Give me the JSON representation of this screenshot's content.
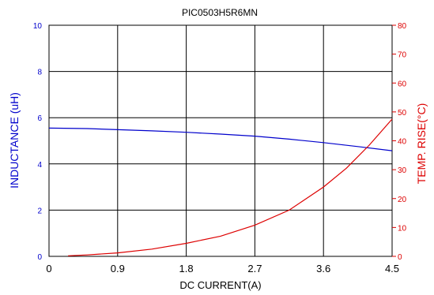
{
  "chart_data": {
    "type": "line",
    "title": "PIC0503H5R6MN",
    "xlabel": "DC CURRENT(A)",
    "ylabel_left": "INDUCTANCE (uH)",
    "ylabel_right": "TEMP. RISE(°C)",
    "xlim": [
      0,
      4.5
    ],
    "ylim_left": [
      0,
      10
    ],
    "ylim_right": [
      0,
      80
    ],
    "x_ticks": [
      "0",
      "0.9",
      "1.8",
      "2.7",
      "3.6",
      "4.5"
    ],
    "y_ticks_left": [
      "0",
      "2",
      "4",
      "6",
      "8",
      "10"
    ],
    "y_ticks_right": [
      "0",
      "10",
      "20",
      "30",
      "40",
      "50",
      "60",
      "70",
      "80"
    ],
    "grid": true,
    "colors": {
      "inductance": "#0000cc",
      "temp": "#dd0000",
      "axis": "#000000"
    },
    "series": [
      {
        "axis": "left",
        "color": "#0000cc",
        "x": [
          0,
          0.5,
          0.9,
          1.35,
          1.8,
          2.25,
          2.7,
          3.15,
          3.6,
          4.05,
          4.5
        ],
        "y": [
          5.55,
          5.53,
          5.48,
          5.43,
          5.37,
          5.29,
          5.2,
          5.07,
          4.92,
          4.75,
          4.57
        ]
      },
      {
        "axis": "right",
        "color": "#dd0000",
        "x": [
          0.25,
          0.5,
          0.9,
          1.35,
          1.8,
          2.25,
          2.7,
          3.15,
          3.6,
          3.9,
          4.2,
          4.5
        ],
        "y": [
          0.2,
          0.5,
          1.2,
          2.5,
          4.5,
          7.0,
          10.8,
          16.0,
          24.0,
          30.5,
          38.5,
          47.5
        ]
      }
    ]
  }
}
